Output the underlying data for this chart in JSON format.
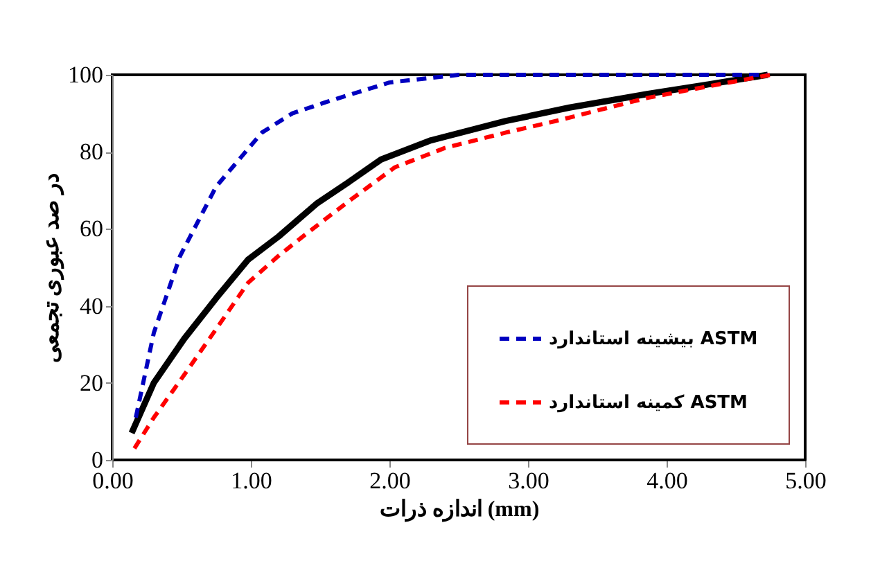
{
  "chart_data": {
    "type": "line",
    "xlabel": "اندازه ذرات (mm)",
    "ylabel": "در صد عبوری تجمعی",
    "xlim": [
      0,
      5
    ],
    "ylim": [
      0,
      100
    ],
    "xticks": [
      {
        "value": 0,
        "label": "0.00"
      },
      {
        "value": 1,
        "label": "1.00"
      },
      {
        "value": 2,
        "label": "2.00"
      },
      {
        "value": 3,
        "label": "3.00"
      },
      {
        "value": 4,
        "label": "4.00"
      },
      {
        "value": 5,
        "label": "5.00"
      }
    ],
    "yticks": [
      0,
      20,
      40,
      60,
      80,
      100
    ],
    "grid": false,
    "legend": "bottom right",
    "marker": "none",
    "series": [
      {
        "color": "#000000",
        "line_style": "solid",
        "x": [
          0.14,
          0.3,
          0.52,
          0.75,
          0.98,
          1.2,
          1.48,
          1.7,
          1.94,
          2.3,
          2.84,
          3.3,
          3.86,
          4.3,
          4.73
        ],
        "values": [
          7,
          20,
          31.5,
          42,
          52,
          58,
          66.7,
          72,
          78,
          83,
          88,
          91.5,
          95,
          97.5,
          100
        ]
      },
      {
        "name": "بیشینه استاندارد ASTM",
        "color": "#0000c0",
        "line_style": "dashed",
        "x": [
          0.17,
          0.3,
          0.49,
          0.75,
          1.08,
          1.3,
          1.55,
          2.0,
          2.5,
          3.0,
          3.5,
          4.0,
          4.73
        ],
        "values": [
          11,
          33,
          53,
          71,
          85,
          90,
          93,
          98,
          100,
          100,
          100,
          100,
          100
        ]
      },
      {
        "name": "کمینه استاندارد ASTM",
        "color": "#ff0000",
        "line_style": "dashed",
        "x": [
          0.16,
          0.3,
          0.49,
          0.75,
          0.98,
          1.2,
          1.41,
          1.7,
          2.04,
          2.4,
          2.84,
          3.2,
          3.86,
          4.3,
          4.75
        ],
        "values": [
          3,
          11,
          20.6,
          34,
          46,
          53,
          59,
          67,
          76,
          81,
          85,
          88,
          94,
          97,
          100
        ]
      }
    ]
  }
}
